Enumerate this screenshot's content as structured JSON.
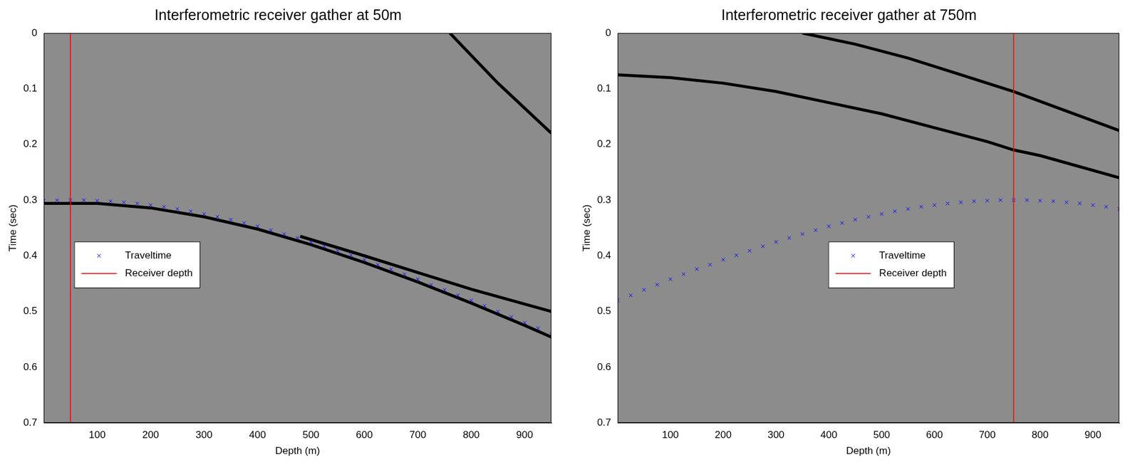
{
  "chart_data": [
    {
      "type": "scatter",
      "title": "Interferometric receiver gather at 50m",
      "x_label": "Depth (m)",
      "y_label": "Time (sec)",
      "xlim": [
        0,
        950
      ],
      "ylim": [
        0,
        0.7
      ],
      "xticks": [
        100,
        200,
        300,
        400,
        500,
        600,
        700,
        800,
        900
      ],
      "yticks": [
        0,
        0.1,
        0.2,
        0.3,
        0.4,
        0.5,
        0.6,
        0.7
      ],
      "grid": false,
      "legend": "center left",
      "series": [
        {
          "name": "Traveltime",
          "color": "#0000ff",
          "marker": "x",
          "x": [
            0,
            25,
            50,
            75,
            100,
            125,
            150,
            175,
            200,
            225,
            250,
            275,
            300,
            325,
            350,
            375,
            400,
            425,
            450,
            475,
            500,
            525,
            550,
            575,
            600,
            625,
            650,
            675,
            700,
            725,
            750,
            775,
            800,
            825,
            850,
            875,
            900,
            925,
            950
          ],
          "values": [
            0.301,
            0.3,
            0.3,
            0.3,
            0.301,
            0.302,
            0.304,
            0.306,
            0.309,
            0.312,
            0.316,
            0.32,
            0.325,
            0.33,
            0.335,
            0.341,
            0.347,
            0.354,
            0.361,
            0.368,
            0.375,
            0.383,
            0.391,
            0.399,
            0.407,
            0.416,
            0.424,
            0.433,
            0.442,
            0.452,
            0.461,
            0.471,
            0.48,
            0.49,
            0.5,
            0.51,
            0.52,
            0.53,
            0.541
          ]
        },
        {
          "name": "Receiver depth",
          "color": "#ff0000",
          "line_style": "solid",
          "x": [
            50,
            50
          ],
          "values": [
            0,
            0.7
          ]
        }
      ],
      "events": [
        {
          "color": "#000000",
          "x": [
            0,
            100,
            200,
            300,
            400,
            500,
            600,
            700,
            800,
            900,
            950
          ],
          "values": [
            0.306,
            0.306,
            0.314,
            0.33,
            0.352,
            0.38,
            0.412,
            0.447,
            0.485,
            0.525,
            0.546
          ]
        },
        {
          "color": "#000000",
          "x": [
            760,
            850,
            950
          ],
          "values": [
            0,
            0.09,
            0.18
          ]
        },
        {
          "color": "#000000",
          "x": [
            480,
            600,
            700,
            800,
            950
          ],
          "values": [
            0.365,
            0.4,
            0.43,
            0.46,
            0.5
          ]
        }
      ]
    },
    {
      "type": "scatter",
      "title": "Interferometric receiver gather at 750m",
      "x_label": "Depth (m)",
      "y_label": "Time (sec)",
      "xlim": [
        0,
        950
      ],
      "ylim": [
        0,
        0.7
      ],
      "xticks": [
        100,
        200,
        300,
        400,
        500,
        600,
        700,
        800,
        900
      ],
      "yticks": [
        0,
        0.1,
        0.2,
        0.3,
        0.4,
        0.5,
        0.6,
        0.7
      ],
      "grid": false,
      "legend": "center",
      "series": [
        {
          "name": "Traveltime",
          "color": "#0000ff",
          "marker": "x",
          "x": [
            0,
            25,
            50,
            75,
            100,
            125,
            150,
            175,
            200,
            225,
            250,
            275,
            300,
            325,
            350,
            375,
            400,
            425,
            450,
            475,
            500,
            525,
            550,
            575,
            600,
            625,
            650,
            675,
            700,
            725,
            750,
            775,
            800,
            825,
            850,
            875,
            900,
            925,
            950
          ],
          "values": [
            0.48,
            0.471,
            0.461,
            0.452,
            0.442,
            0.433,
            0.424,
            0.416,
            0.407,
            0.399,
            0.391,
            0.383,
            0.375,
            0.368,
            0.361,
            0.354,
            0.347,
            0.341,
            0.335,
            0.33,
            0.325,
            0.32,
            0.316,
            0.312,
            0.309,
            0.306,
            0.304,
            0.302,
            0.301,
            0.3,
            0.3,
            0.3,
            0.301,
            0.302,
            0.304,
            0.306,
            0.309,
            0.312,
            0.316
          ]
        },
        {
          "name": "Receiver depth",
          "color": "#ff0000",
          "line_style": "solid",
          "x": [
            750,
            750
          ],
          "values": [
            0,
            0.7
          ]
        }
      ],
      "events": [
        {
          "color": "#000000",
          "x": [
            0,
            100,
            200,
            300,
            400,
            500,
            600,
            700,
            750,
            800,
            950
          ],
          "values": [
            0.075,
            0.08,
            0.09,
            0.105,
            0.125,
            0.145,
            0.17,
            0.195,
            0.21,
            0.22,
            0.26
          ]
        },
        {
          "color": "#000000",
          "x": [
            350,
            450,
            550,
            650,
            750,
            850,
            950
          ],
          "values": [
            0,
            0.02,
            0.045,
            0.075,
            0.105,
            0.14,
            0.175
          ]
        }
      ]
    }
  ]
}
